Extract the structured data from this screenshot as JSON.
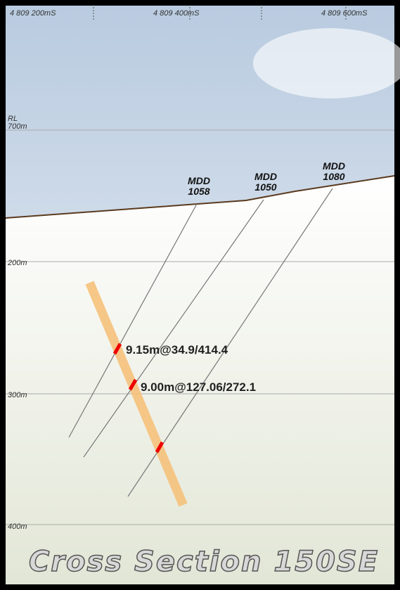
{
  "top_labels": [
    "4 809 200mS",
    "4 809 400mS",
    "4 809 600mS"
  ],
  "rl_label": "RL",
  "depth_labels": [
    "700m",
    "200m",
    "300m",
    "400m"
  ],
  "drill_holes": [
    {
      "name": "MDD",
      "number": "1058"
    },
    {
      "name": "MDD",
      "number": "1050"
    },
    {
      "name": "MDD",
      "number": "1080"
    }
  ],
  "intercepts": [
    "9.15m@34.9/414.4",
    "9.00m@127.06/272.1"
  ],
  "title": "Cross Section 150SE"
}
